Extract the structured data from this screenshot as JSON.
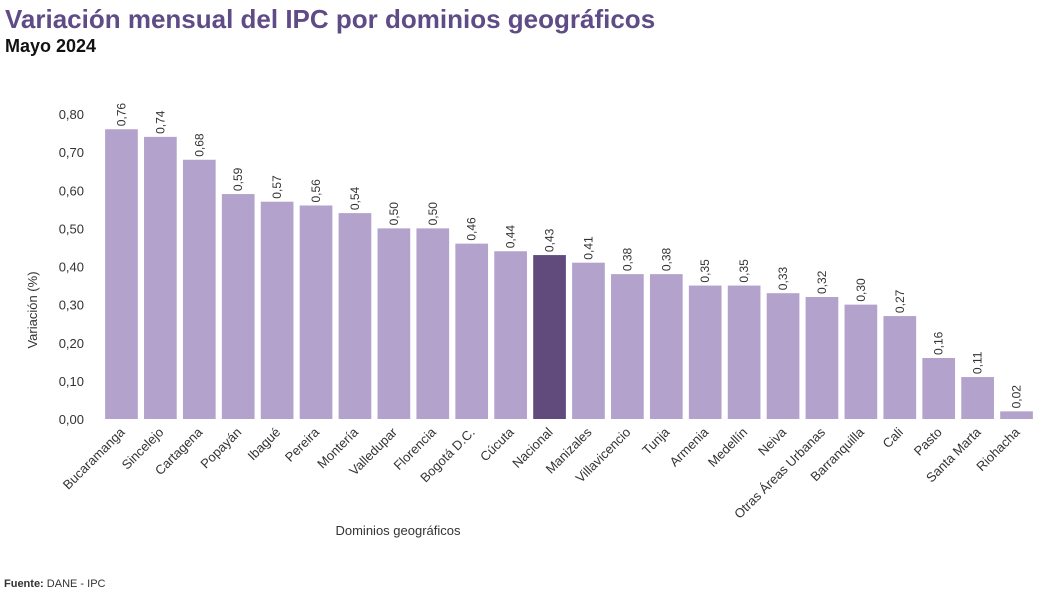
{
  "header": {
    "title": "Variación mensual del IPC por dominios geográficos",
    "subtitle": "Mayo 2024"
  },
  "footer": {
    "source_label": "Fuente:",
    "source_text": "DANE - IPC"
  },
  "colors": {
    "bar": "#b3a2cb",
    "highlight": "#614b7d",
    "title": "#5f4b86"
  },
  "chart_data": {
    "type": "bar",
    "title": "Variación mensual del IPC por dominios geográficos",
    "subtitle": "Mayo 2024",
    "xlabel": "Dominios geográficos",
    "ylabel": "Variación (%)",
    "ylim": [
      0,
      0.8
    ],
    "yticks": [
      "0,00",
      "0,10",
      "0,20",
      "0,30",
      "0,40",
      "0,50",
      "0,60",
      "0,70",
      "0,80"
    ],
    "grid": false,
    "legend": "none",
    "highlight": "Nacional",
    "categories": [
      "Bucaramanga",
      "Sincelejo",
      "Cartagena",
      "Popayán",
      "Ibagué",
      "Pereira",
      "Montería",
      "Valledupar",
      "Florencia",
      "Bogotá D.C.",
      "Cúcuta",
      "Nacional",
      "Manizales",
      "Villavicencio",
      "Tunja",
      "Armenia",
      "Medellín",
      "Neiva",
      "Otras Áreas Urbanas",
      "Barranquilla",
      "Cali",
      "Pasto",
      "Santa Marta",
      "Riohacha"
    ],
    "values": [
      0.76,
      0.74,
      0.68,
      0.59,
      0.57,
      0.56,
      0.54,
      0.5,
      0.5,
      0.46,
      0.44,
      0.43,
      0.41,
      0.38,
      0.38,
      0.35,
      0.35,
      0.33,
      0.32,
      0.3,
      0.27,
      0.16,
      0.11,
      0.02
    ],
    "value_labels": [
      "0,76",
      "0,74",
      "0,68",
      "0,59",
      "0,57",
      "0,56",
      "0,54",
      "0,50",
      "0,50",
      "0,46",
      "0,44",
      "0,43",
      "0,41",
      "0,38",
      "0,38",
      "0,35",
      "0,35",
      "0,33",
      "0,32",
      "0,30",
      "0,27",
      "0,16",
      "0,11",
      "0,02"
    ]
  }
}
